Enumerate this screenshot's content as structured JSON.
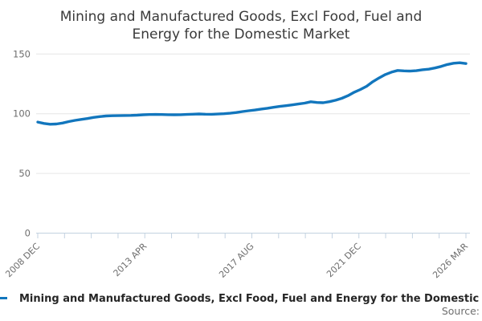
{
  "title": "Mining and Manufactured Goods, Excl Food, Fuel and Energy for the Domestic Market",
  "legend": {
    "series_label": "Mining and Manufactured Goods, Excl Food, Fuel and Energy for the Domestic Market"
  },
  "source_label": "Source:",
  "colors": {
    "line": "#1276bd",
    "grid": "#e6e6e6",
    "axis": "#c3d2e0",
    "tick_label": "#6e6e6e",
    "title_text": "#3a3a3a",
    "legend_text": "#262626",
    "source_text": "#6e6e6e"
  },
  "chart_data": {
    "type": "line",
    "title": "Mining and Manufactured Goods, Excl Food, Fuel and Energy for the Domestic Market",
    "xlabel": "",
    "ylabel": "",
    "ylim": [
      0,
      150
    ],
    "y_ticks": [
      0,
      50,
      100,
      150
    ],
    "x_range_months": 207,
    "x_minor_tick_count": 17,
    "x_tick_labels": [
      "2008 DEC",
      "2013 APR",
      "2017 AUG",
      "2021 DEC",
      "2026 MAR"
    ],
    "x_labeled_tick_indices": [
      0,
      4,
      8,
      12,
      16
    ],
    "grid": "horizontal",
    "legend_position": "bottom-left",
    "series": [
      {
        "name": "Mining and Manufactured Goods, Excl Food, Fuel and Energy for the Domestic Market",
        "points": [
          [
            "2008 DEC",
            93.0
          ],
          [
            "2009 MAR",
            91.9
          ],
          [
            "2009 JUN",
            91.2
          ],
          [
            "2009 SEP",
            91.4
          ],
          [
            "2009 DEC",
            92.2
          ],
          [
            "2010 MAR",
            93.4
          ],
          [
            "2010 JUN",
            94.4
          ],
          [
            "2010 SEP",
            95.2
          ],
          [
            "2010 DEC",
            96.0
          ],
          [
            "2011 MAR",
            96.9
          ],
          [
            "2011 JUN",
            97.6
          ],
          [
            "2011 SEP",
            98.1
          ],
          [
            "2011 DEC",
            98.3
          ],
          [
            "2012 MAR",
            98.4
          ],
          [
            "2012 JUN",
            98.5
          ],
          [
            "2012 SEP",
            98.6
          ],
          [
            "2012 DEC",
            98.8
          ],
          [
            "2013 MAR",
            99.1
          ],
          [
            "2013 JUN",
            99.3
          ],
          [
            "2013 SEP",
            99.4
          ],
          [
            "2013 DEC",
            99.3
          ],
          [
            "2014 MAR",
            99.2
          ],
          [
            "2014 JUN",
            99.1
          ],
          [
            "2014 SEP",
            99.2
          ],
          [
            "2014 DEC",
            99.4
          ],
          [
            "2015 MAR",
            99.6
          ],
          [
            "2015 JUN",
            99.8
          ],
          [
            "2015 SEP",
            99.6
          ],
          [
            "2015 DEC",
            99.5
          ],
          [
            "2016 MAR",
            99.7
          ],
          [
            "2016 JUN",
            100.0
          ],
          [
            "2016 SEP",
            100.4
          ],
          [
            "2016 DEC",
            101.0
          ],
          [
            "2017 MAR",
            101.8
          ],
          [
            "2017 JUN",
            102.5
          ],
          [
            "2017 SEP",
            103.1
          ],
          [
            "2017 DEC",
            103.9
          ],
          [
            "2018 MAR",
            104.6
          ],
          [
            "2018 JUN",
            105.4
          ],
          [
            "2018 SEP",
            106.1
          ],
          [
            "2018 DEC",
            106.7
          ],
          [
            "2019 MAR",
            107.4
          ],
          [
            "2019 JUN",
            108.1
          ],
          [
            "2019 SEP",
            108.9
          ],
          [
            "2019 DEC",
            110.0
          ],
          [
            "2020 MAR",
            109.4
          ],
          [
            "2020 JUN",
            109.2
          ],
          [
            "2020 SEP",
            110.1
          ],
          [
            "2020 DEC",
            111.3
          ],
          [
            "2021 MAR",
            112.9
          ],
          [
            "2021 JUN",
            115.1
          ],
          [
            "2021 SEP",
            118.0
          ],
          [
            "2021 DEC",
            120.3
          ],
          [
            "2022 MAR",
            123.0
          ],
          [
            "2022 JUN",
            126.8
          ],
          [
            "2022 SEP",
            130.0
          ],
          [
            "2022 DEC",
            132.8
          ],
          [
            "2023 MAR",
            134.8
          ],
          [
            "2023 JUN",
            136.2
          ],
          [
            "2023 SEP",
            135.9
          ],
          [
            "2023 DEC",
            135.7
          ],
          [
            "2024 MAR",
            136.0
          ],
          [
            "2024 JUN",
            136.8
          ],
          [
            "2024 SEP",
            137.3
          ],
          [
            "2024 DEC",
            138.3
          ],
          [
            "2025 MAR",
            139.6
          ],
          [
            "2025 JUN",
            141.2
          ],
          [
            "2025 SEP",
            142.3
          ],
          [
            "2025 DEC",
            142.7
          ],
          [
            "2026 MAR",
            142.0
          ]
        ]
      }
    ]
  }
}
